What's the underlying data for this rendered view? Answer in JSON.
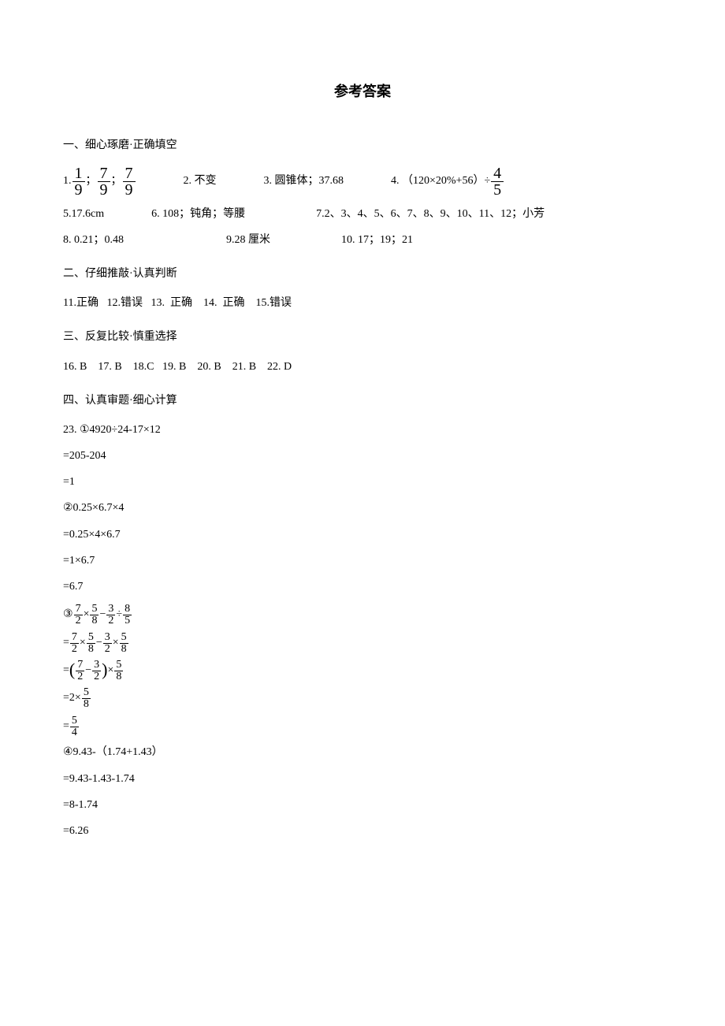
{
  "title": "参考答案",
  "section1": {
    "heading": "一、细心琢磨·正确填空",
    "q1": {
      "label": "1.",
      "frac_a_num": "1",
      "frac_a_den": "9",
      "sep1": "；",
      "frac_b_num": "7",
      "frac_b_den": "9",
      "sep2": "；",
      "frac_c_num": "7",
      "frac_c_den": "9"
    },
    "q2": {
      "label": "2. 不变"
    },
    "q3": {
      "label": "3. 圆锥体；37.68"
    },
    "q4": {
      "label": "4. （120×20%+56）÷",
      "frac_num": "4",
      "frac_den": "5"
    },
    "q5": {
      "label": "5.17.6cm"
    },
    "q6": {
      "label": "6. 108；钝角；等腰"
    },
    "q7": {
      "label": "7.2、3、4、5、6、7、8、9、10、11、12；小芳"
    },
    "q8": {
      "label": "8. 0.21；0.48"
    },
    "q9": {
      "label": "9.28 厘米"
    },
    "q10": {
      "label": "10. 17；19；21"
    }
  },
  "section2": {
    "heading": "二、仔细推敲·认真判断",
    "line": "11.正确   12.错误   13.  正确    14.  正确    15.错误"
  },
  "section3": {
    "heading": "三、反复比较·慎重选择",
    "line": "16. B    17. B    18.C   19. B    20. B    21. B    22. D"
  },
  "section4": {
    "heading": "四、认真审题·细心计算",
    "q23_label": "23. ①4920÷24-17×12",
    "q23_s1": "=205-204",
    "q23_s2": "=1",
    "q2_label": "②0.25×6.7×4",
    "q2_s1": "=0.25×4×6.7",
    "q2_s2": "=1×6.7",
    "q2_s3": "=6.7",
    "q3_label": "③",
    "q3_line1": {
      "a_num": "7",
      "a_den": "2",
      "b_num": "5",
      "b_den": "8",
      "c_num": "3",
      "c_den": "2",
      "d_num": "8",
      "d_den": "5"
    },
    "q3_line2": {
      "a_num": "7",
      "a_den": "2",
      "b_num": "5",
      "b_den": "8",
      "c_num": "3",
      "c_den": "2",
      "d_num": "5",
      "d_den": "8"
    },
    "q3_line3": {
      "a_num": "7",
      "a_den": "2",
      "b_num": "3",
      "b_den": "2",
      "c_num": "5",
      "c_den": "8"
    },
    "q3_line4": {
      "a": "2",
      "b_num": "5",
      "b_den": "8"
    },
    "q3_line5": {
      "a_num": "5",
      "a_den": "4"
    },
    "q4_label": "④9.43-（1.74+1.43）",
    "q4_s1": "=9.43-1.43-1.74",
    "q4_s2": "=8-1.74",
    "q4_s3": "=6.26"
  }
}
